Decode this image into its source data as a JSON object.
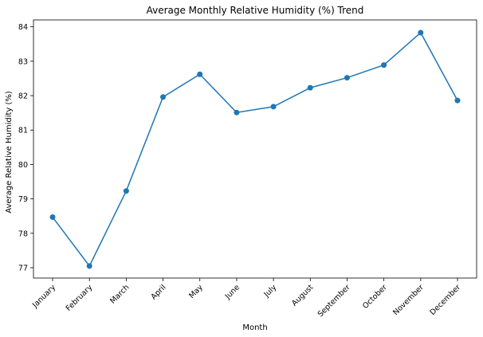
{
  "chart_data": {
    "type": "line",
    "title": "Average Monthly Relative Humidity (%) Trend",
    "xlabel": "Month",
    "ylabel": "Average Relative Humidity (%)",
    "categories": [
      "January",
      "February",
      "March",
      "April",
      "May",
      "June",
      "July",
      "August",
      "September",
      "October",
      "November",
      "December"
    ],
    "series": [
      {
        "values": [
          78.47,
          77.05,
          79.23,
          81.96,
          82.62,
          81.51,
          81.68,
          82.23,
          82.52,
          82.89,
          83.83,
          81.86
        ],
        "color": "#1f77b4",
        "marker": "circle"
      }
    ],
    "ylim": [
      76.7,
      84.2
    ],
    "yticks": [
      77,
      78,
      79,
      80,
      81,
      82,
      83,
      84
    ],
    "grid": false,
    "legend": false
  }
}
